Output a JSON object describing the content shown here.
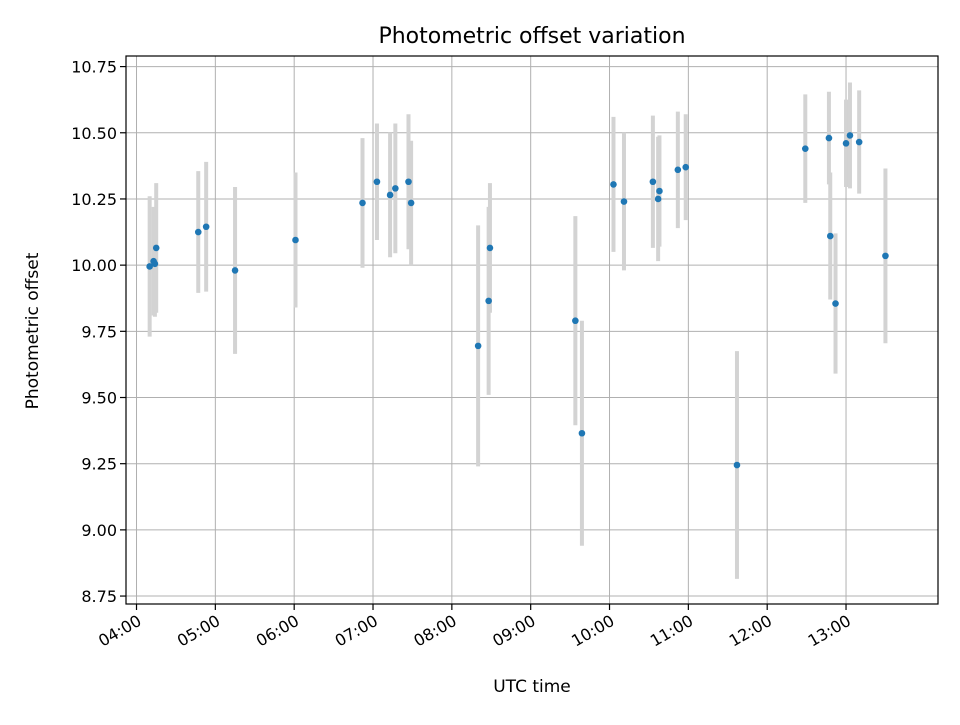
{
  "chart_data": {
    "type": "scatter",
    "title": "Photometric offset variation",
    "xlabel": "UTC time",
    "ylabel": "Photometric offset",
    "xlim": [
      "03:52",
      "14:10"
    ],
    "ylim": [
      8.72,
      10.79
    ],
    "grid": true,
    "x_ticks": [
      "04:00",
      "05:00",
      "06:00",
      "07:00",
      "08:00",
      "09:00",
      "10:00",
      "11:00",
      "12:00",
      "13:00"
    ],
    "y_ticks": [
      "8.75",
      "9.00",
      "9.25",
      "9.50",
      "9.75",
      "10.00",
      "10.25",
      "10.50",
      "10.75"
    ],
    "colors": {
      "points": "#1f77b4",
      "errorbars": "#d3d3d3",
      "grid": "#b0b0b0",
      "axes": "#000000"
    },
    "series": [
      {
        "points": [
          {
            "time": "04:10",
            "y": 9.995,
            "err": 0.265
          },
          {
            "time": "04:13",
            "y": 10.015,
            "err": 0.205
          },
          {
            "time": "04:14",
            "y": 10.005,
            "err": 0.2
          },
          {
            "time": "04:15",
            "y": 10.065,
            "err": 0.245
          },
          {
            "time": "04:47",
            "y": 10.125,
            "err": 0.23
          },
          {
            "time": "04:53",
            "y": 10.145,
            "err": 0.245
          },
          {
            "time": "05:15",
            "y": 9.98,
            "err": 0.315
          },
          {
            "time": "06:01",
            "y": 10.095,
            "err": 0.255
          },
          {
            "time": "06:52",
            "y": 10.235,
            "err": 0.245
          },
          {
            "time": "07:03",
            "y": 10.315,
            "err": 0.22
          },
          {
            "time": "07:13",
            "y": 10.265,
            "err": 0.235
          },
          {
            "time": "07:17",
            "y": 10.29,
            "err": 0.245
          },
          {
            "time": "07:27",
            "y": 10.315,
            "err": 0.255
          },
          {
            "time": "07:29",
            "y": 10.235,
            "err": 0.235
          },
          {
            "time": "08:20",
            "y": 9.695,
            "err": 0.455
          },
          {
            "time": "08:28",
            "y": 9.865,
            "err": 0.355
          },
          {
            "time": "08:29",
            "y": 10.065,
            "err": 0.245
          },
          {
            "time": "09:34",
            "y": 9.79,
            "err": 0.395
          },
          {
            "time": "09:39",
            "y": 9.365,
            "err": 0.425
          },
          {
            "time": "10:03",
            "y": 10.305,
            "err": 0.255
          },
          {
            "time": "10:11",
            "y": 10.24,
            "err": 0.26
          },
          {
            "time": "10:33",
            "y": 10.315,
            "err": 0.25
          },
          {
            "time": "10:37",
            "y": 10.25,
            "err": 0.235
          },
          {
            "time": "10:38",
            "y": 10.28,
            "err": 0.21
          },
          {
            "time": "10:52",
            "y": 10.36,
            "err": 0.22
          },
          {
            "time": "10:58",
            "y": 10.37,
            "err": 0.2
          },
          {
            "time": "11:37",
            "y": 9.245,
            "err": 0.43
          },
          {
            "time": "12:29",
            "y": 10.44,
            "err": 0.205
          },
          {
            "time": "12:47",
            "y": 10.48,
            "err": 0.175
          },
          {
            "time": "12:48",
            "y": 10.11,
            "err": 0.24
          },
          {
            "time": "12:52",
            "y": 9.855,
            "err": 0.265
          },
          {
            "time": "13:00",
            "y": 10.46,
            "err": 0.165
          },
          {
            "time": "13:03",
            "y": 10.49,
            "err": 0.2
          },
          {
            "time": "13:10",
            "y": 10.465,
            "err": 0.195
          },
          {
            "time": "13:30",
            "y": 10.035,
            "err": 0.33
          }
        ]
      }
    ]
  }
}
